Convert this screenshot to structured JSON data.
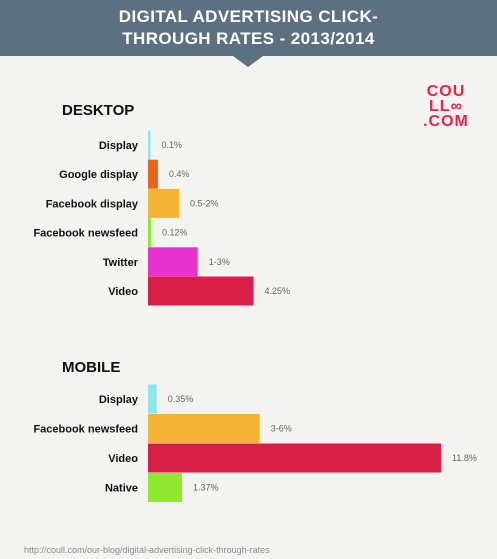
{
  "title": {
    "line1": "DIGITAL ADVERTISING CLICK-",
    "line2": "THROUGH RATES - 2013/2014"
  },
  "logo": {
    "line1": "COU",
    "line2": "LL∞",
    "line3": ".COM"
  },
  "source": "http://coull.com/our-blog/digital-advertising-click-through-rates",
  "colors": {
    "header": "#5d7081",
    "logo": "#e8224a"
  },
  "chart_data": [
    {
      "type": "bar",
      "orientation": "horizontal",
      "title": "DESKTOP",
      "categories": [
        "Display",
        "Google display",
        "Facebook display",
        "Facebook newsfeed",
        "Twitter",
        "Video"
      ],
      "values": [
        0.1,
        0.4,
        1.25,
        0.12,
        2.0,
        4.25
      ],
      "value_labels": [
        "0.1%",
        "0.4%",
        "0.5-2%",
        "0.12%",
        "1-3%",
        "4.25%"
      ],
      "colors": [
        "#8de4ea",
        "#e8641d",
        "#f5b335",
        "#8ee830",
        "#e632cf",
        "#d81f48"
      ],
      "unit": "%",
      "xlim": [
        0,
        11.8
      ]
    },
    {
      "type": "bar",
      "orientation": "horizontal",
      "title": "MOBILE",
      "categories": [
        "Display",
        "Facebook newsfeed",
        "Video",
        "Native"
      ],
      "values": [
        0.35,
        4.5,
        11.8,
        1.37
      ],
      "value_labels": [
        "0.35%",
        "3-6%",
        "11.8%",
        "1.37%"
      ],
      "colors": [
        "#8de4ea",
        "#f5b335",
        "#d81f48",
        "#8ee830"
      ],
      "unit": "%",
      "xlim": [
        0,
        11.8
      ]
    }
  ]
}
